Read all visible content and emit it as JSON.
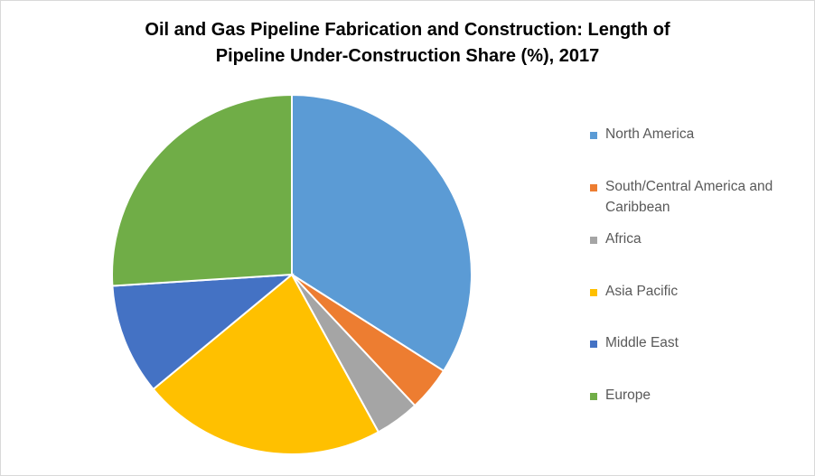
{
  "chart_data": {
    "type": "pie",
    "title": "Oil and Gas Pipeline Fabrication and Construction: Length of Pipeline Under-Construction Share (%), 2017",
    "series": [
      {
        "name": "Share",
        "categories": [
          "North America",
          "South/Central America and Caribbean",
          "Africa",
          "Asia Pacific",
          "Middle East",
          "Europe"
        ],
        "values": [
          34,
          4,
          4,
          22,
          10,
          26
        ],
        "colors": [
          "#5b9bd5",
          "#ed7d31",
          "#a5a5a5",
          "#ffc000",
          "#4472c4",
          "#70ad47"
        ]
      }
    ],
    "legend": "right"
  }
}
